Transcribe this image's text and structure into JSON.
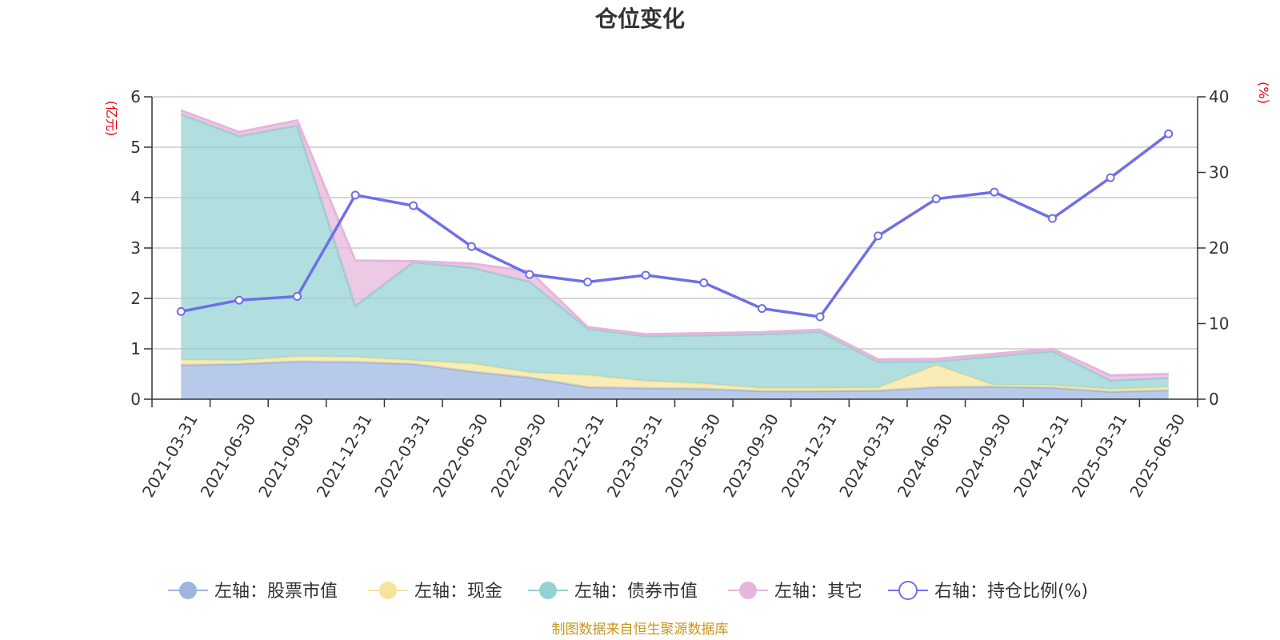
{
  "chart_data": {
    "type": "area",
    "title": "仓位变化",
    "left_axis_unit": "(亿元)",
    "right_axis_unit": "(%)",
    "x": [
      "2021-03-31",
      "2021-06-30",
      "2021-09-30",
      "2021-12-31",
      "2022-03-31",
      "2022-06-30",
      "2022-09-30",
      "2022-12-31",
      "2023-03-31",
      "2023-06-30",
      "2023-09-30",
      "2023-12-31",
      "2024-03-31",
      "2024-06-30",
      "2024-09-30",
      "2024-12-31",
      "2025-03-31",
      "2025-06-30"
    ],
    "left_axis": {
      "min": 0,
      "max": 6,
      "ticks": [
        "0",
        "1",
        "2",
        "3",
        "4",
        "5",
        "6"
      ]
    },
    "right_axis": {
      "min": 0,
      "max": 40,
      "ticks": [
        "0",
        "10",
        "20",
        "30",
        "40"
      ]
    },
    "stacked_series": [
      {
        "name": "左轴：股票市值",
        "color": "#9db6e0",
        "values": [
          0.68,
          0.7,
          0.75,
          0.74,
          0.7,
          0.55,
          0.43,
          0.24,
          0.22,
          0.21,
          0.16,
          0.16,
          0.17,
          0.24,
          0.25,
          0.23,
          0.15,
          0.18
        ]
      },
      {
        "name": "左轴：现金",
        "color": "#f7e49a",
        "values": [
          0.1,
          0.07,
          0.1,
          0.1,
          0.07,
          0.16,
          0.1,
          0.24,
          0.14,
          0.1,
          0.06,
          0.06,
          0.06,
          0.44,
          0.03,
          0.05,
          0.05,
          0.06
        ]
      },
      {
        "name": "左轴：债券市值",
        "color": "#93d1d3",
        "values": [
          4.87,
          4.45,
          4.58,
          1.01,
          1.95,
          1.9,
          1.8,
          0.92,
          0.89,
          0.96,
          1.07,
          1.12,
          0.51,
          0.07,
          0.57,
          0.67,
          0.17,
          0.18
        ]
      },
      {
        "name": "左轴：其它",
        "color": "#e6b5da",
        "values": [
          0.08,
          0.08,
          0.1,
          0.9,
          0.02,
          0.08,
          0.21,
          0.03,
          0.04,
          0.04,
          0.04,
          0.04,
          0.05,
          0.05,
          0.05,
          0.05,
          0.1,
          0.08
        ]
      }
    ],
    "line_series": {
      "name": "右轴：持仓比例(%)",
      "color": "#6f6fe8",
      "values": [
        11.6,
        13.1,
        13.6,
        27.0,
        25.6,
        20.2,
        16.5,
        15.5,
        16.4,
        15.4,
        12.0,
        10.9,
        21.6,
        26.5,
        27.4,
        23.9,
        29.3,
        35.1
      ]
    },
    "grid": true,
    "legend_position": "bottom"
  },
  "source_note": "制图数据来自恒生聚源数据库"
}
